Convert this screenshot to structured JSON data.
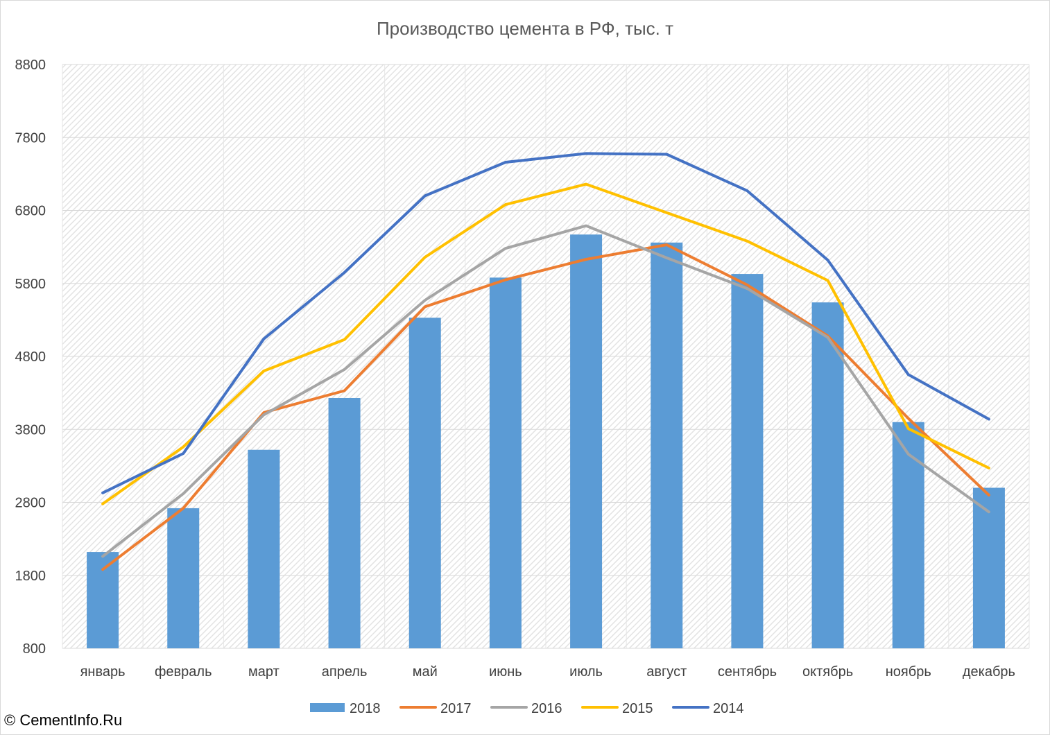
{
  "chart_data": {
    "type": "bar",
    "title": "Производство цемента в РФ, тыс. т",
    "xlabel": "",
    "ylabel": "",
    "ylim": [
      800,
      8800
    ],
    "y_ticks": [
      "8800",
      "7800",
      "6800",
      "5800",
      "4800",
      "3800",
      "2800",
      "1800",
      "800"
    ],
    "y_tick_values": [
      8800,
      7800,
      6800,
      5800,
      4800,
      3800,
      2800,
      1800,
      800
    ],
    "categories": [
      "январь",
      "февраль",
      "март",
      "апрель",
      "май",
      "июнь",
      "июль",
      "август",
      "сентябрь",
      "октябрь",
      "ноябрь",
      "декабрь"
    ],
    "grid": true,
    "legend_position": "bottom",
    "series": [
      {
        "name": "2018",
        "type": "bar",
        "color": "#5b9bd5",
        "values": [
          2120,
          2720,
          3520,
          4230,
          5330,
          5880,
          6470,
          6360,
          5930,
          5540,
          3900,
          3000
        ]
      },
      {
        "name": "2017",
        "type": "line",
        "color": "#ed7d31",
        "values": [
          1880,
          2720,
          4030,
          4330,
          5480,
          5850,
          6130,
          6330,
          5780,
          5080,
          3950,
          2900
        ]
      },
      {
        "name": "2016",
        "type": "line",
        "color": "#a5a5a5",
        "values": [
          2060,
          2920,
          4000,
          4620,
          5570,
          6280,
          6590,
          6150,
          5730,
          5060,
          3460,
          2670
        ]
      },
      {
        "name": "2015",
        "type": "line",
        "color": "#ffc000",
        "values": [
          2780,
          3560,
          4600,
          5030,
          6160,
          6880,
          7160,
          6770,
          6380,
          5840,
          3810,
          3270
        ]
      },
      {
        "name": "2014",
        "type": "line",
        "color": "#4472c4",
        "values": [
          2930,
          3470,
          5040,
          5950,
          7000,
          7460,
          7580,
          7570,
          7070,
          6120,
          4550,
          3940
        ]
      }
    ]
  },
  "footer": {
    "copyright": "© CementInfo.Ru"
  }
}
